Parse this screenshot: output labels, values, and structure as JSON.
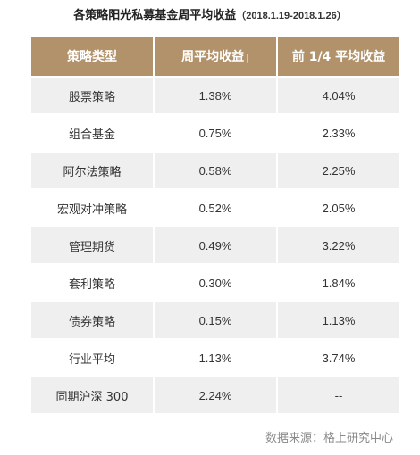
{
  "title": {
    "main": "各策略阳光私募基金周平均收益",
    "range": "（2018.1.19-2018.1.26）"
  },
  "table": {
    "headers": [
      "策略类型",
      "周平均收益",
      "前 1/4 平均收益"
    ],
    "sort_mark": "|",
    "rows": [
      [
        "股票策略",
        "1.38%",
        "4.04%"
      ],
      [
        "组合基金",
        "0.75%",
        "2.33%"
      ],
      [
        "阿尔法策略",
        "0.58%",
        "2.25%"
      ],
      [
        "宏观对冲策略",
        "0.52%",
        "2.05%"
      ],
      [
        "管理期货",
        "0.49%",
        "3.22%"
      ],
      [
        "套利策略",
        "0.30%",
        "1.84%"
      ],
      [
        "债券策略",
        "0.15%",
        "1.13%"
      ],
      [
        "行业平均",
        "1.13%",
        "3.74%"
      ],
      [
        "同期沪深 300",
        "2.24%",
        "--"
      ]
    ]
  },
  "source": "数据来源：格上研究中心",
  "colors": {
    "header_bg": "#b2926b",
    "header_text": "#ffffff",
    "row_alt_bg": "#efefef",
    "source_text": "#8a8a8a"
  }
}
